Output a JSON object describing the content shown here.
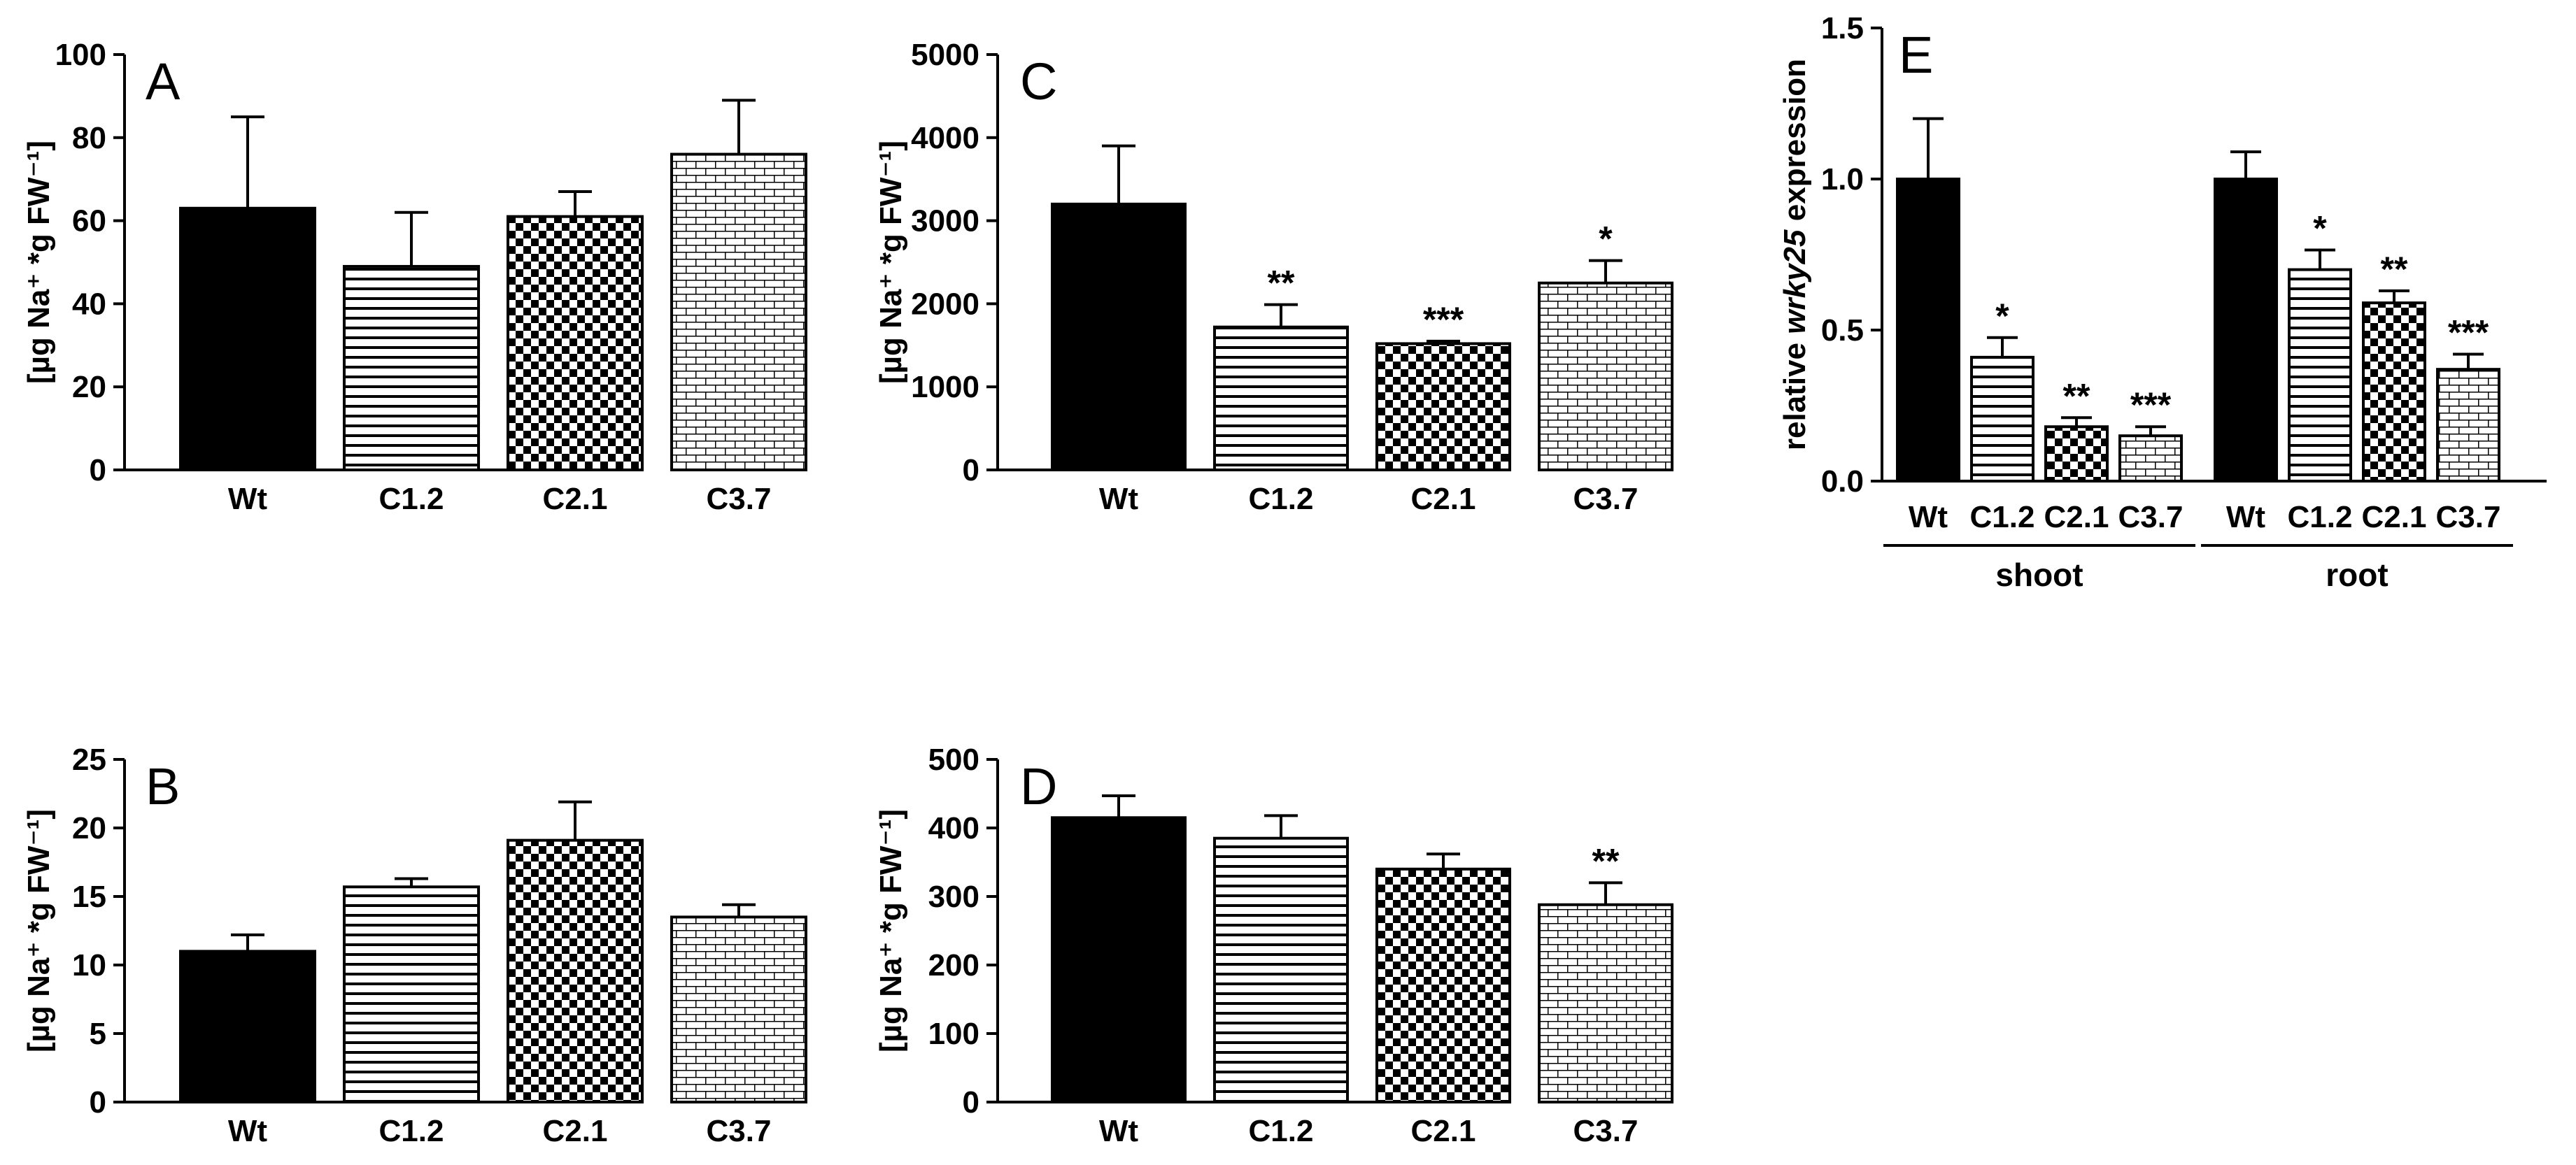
{
  "chart_data": [
    {
      "id": "A",
      "type": "bar",
      "panel_label": "A",
      "ylabel": "[µg Na⁺ *g FW⁻¹]",
      "ylim": [
        0,
        100
      ],
      "yticks": [
        0,
        20,
        40,
        60,
        80,
        100
      ],
      "tick_labels": [
        "0",
        "20",
        "40",
        "60",
        "80",
        "100"
      ],
      "categories": [
        "Wt",
        "C1.2",
        "C2.1",
        "C3.7"
      ],
      "values": [
        63,
        49,
        61,
        76
      ],
      "errors": [
        22,
        13,
        6,
        13
      ],
      "patterns": [
        "solid",
        "hlines",
        "checker",
        "brick"
      ],
      "significance": [
        "",
        "",
        "",
        ""
      ]
    },
    {
      "id": "B",
      "type": "bar",
      "panel_label": "B",
      "ylabel": "[µg Na⁺ *g FW⁻¹]",
      "ylim": [
        0,
        25
      ],
      "yticks": [
        0,
        5,
        10,
        15,
        20,
        25
      ],
      "tick_labels": [
        "0",
        "5",
        "10",
        "15",
        "20",
        "25"
      ],
      "categories": [
        "Wt",
        "C1.2",
        "C2.1",
        "C3.7"
      ],
      "values": [
        11,
        15.7,
        19.1,
        13.5
      ],
      "errors": [
        1.2,
        0.6,
        2.8,
        0.9
      ],
      "patterns": [
        "solid",
        "hlines",
        "checker",
        "brick"
      ],
      "significance": [
        "",
        "",
        "",
        ""
      ]
    },
    {
      "id": "C",
      "type": "bar",
      "panel_label": "C",
      "ylabel": "[µg Na⁺ *g FW⁻¹]",
      "ylim": [
        0,
        5000
      ],
      "yticks": [
        0,
        1000,
        2000,
        3000,
        4000,
        5000
      ],
      "tick_labels": [
        "0",
        "1000",
        "2000",
        "3000",
        "4000",
        "5000"
      ],
      "categories": [
        "Wt",
        "C1.2",
        "C2.1",
        "C3.7"
      ],
      "values": [
        3200,
        1720,
        1520,
        2250
      ],
      "errors": [
        700,
        270,
        30,
        270
      ],
      "patterns": [
        "solid",
        "hlines",
        "checker",
        "brick"
      ],
      "significance": [
        "",
        "**",
        "***",
        "*"
      ]
    },
    {
      "id": "D",
      "type": "bar",
      "panel_label": "D",
      "ylabel": "[µg Na⁺ *g FW⁻¹]",
      "ylim": [
        0,
        500
      ],
      "yticks": [
        0,
        100,
        200,
        300,
        400,
        500
      ],
      "tick_labels": [
        "0",
        "100",
        "200",
        "300",
        "400",
        "500"
      ],
      "categories": [
        "Wt",
        "C1.2",
        "C2.1",
        "C3.7"
      ],
      "values": [
        415,
        385,
        340,
        288
      ],
      "errors": [
        32,
        33,
        22,
        32
      ],
      "patterns": [
        "solid",
        "hlines",
        "checker",
        "brick"
      ],
      "significance": [
        "",
        "",
        "",
        "**"
      ]
    },
    {
      "id": "E",
      "type": "bar",
      "panel_label": "E",
      "ylabel_prefix": "relative ",
      "ylabel_italic": "wrky25",
      "ylabel_suffix": " expression",
      "ylim": [
        0,
        1.5
      ],
      "yticks": [
        0,
        0.5,
        1.0,
        1.5
      ],
      "tick_labels": [
        "0.0",
        "0.5",
        "1.0",
        "1.5"
      ],
      "categories": [
        "Wt",
        "C1.2",
        "C2.1",
        "C3.7",
        "Wt",
        "C1.2",
        "C2.1",
        "C3.7"
      ],
      "groups": [
        {
          "name": "shoot",
          "values": [
            1.0,
            0.41,
            0.18,
            0.15
          ],
          "errors": [
            0.2,
            0.065,
            0.03,
            0.03
          ],
          "significance": [
            "",
            "*",
            "**",
            "***"
          ]
        },
        {
          "name": "root",
          "values": [
            1.0,
            0.7,
            0.59,
            0.37
          ],
          "errors": [
            0.09,
            0.065,
            0.04,
            0.05
          ],
          "significance": [
            "",
            "*",
            "**",
            "***"
          ]
        }
      ],
      "patterns": [
        "solid",
        "hlines",
        "checker",
        "brick"
      ]
    }
  ]
}
